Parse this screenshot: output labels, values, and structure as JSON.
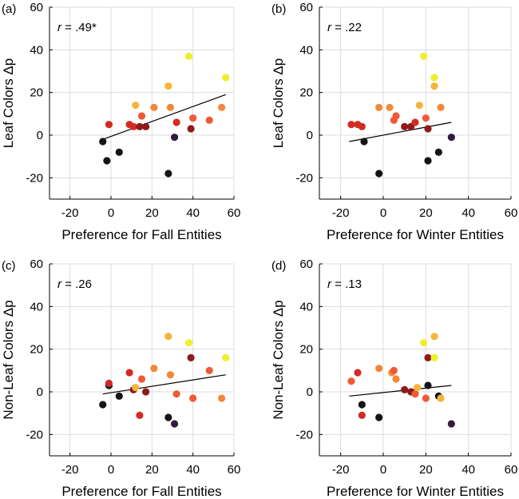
{
  "colors": {
    "grid": "#dcdcdc",
    "axis": "#000000",
    "fit_line": "#000000",
    "point_black": "#141414",
    "point_purple": "#331a40",
    "point_darkred": "#8e1a1a",
    "point_red": "#d42a24",
    "point_orangered": "#ef5a35",
    "point_orange": "#f5873a",
    "point_amber": "#f6b53a",
    "point_yellow": "#f0ee2c"
  },
  "chart_data": [
    {
      "type": "scatter",
      "panel_label": "(a)",
      "annotation": {
        "prefix": "r",
        "text": " = .49*"
      },
      "xlabel": "Preference for Fall Entities",
      "ylabel": "Leaf Colors Δp",
      "xlim": [
        -30,
        60
      ],
      "ylim": [
        -30,
        60
      ],
      "xticks": [
        "-20",
        "0",
        "20",
        "40",
        "60"
      ],
      "yticks": [
        "-20",
        "0",
        "20",
        "40",
        "60"
      ],
      "fit_line": {
        "x": [
          -4,
          56
        ],
        "y": [
          -2,
          19
        ]
      },
      "points": [
        {
          "x": -4,
          "y": -3,
          "c": "point_black"
        },
        {
          "x": -2,
          "y": -12,
          "c": "point_black"
        },
        {
          "x": 4,
          "y": -8,
          "c": "point_black"
        },
        {
          "x": 28,
          "y": -18,
          "c": "point_black"
        },
        {
          "x": -1,
          "y": 5,
          "c": "point_red"
        },
        {
          "x": 9,
          "y": 5,
          "c": "point_red"
        },
        {
          "x": 11,
          "y": 4,
          "c": "point_red"
        },
        {
          "x": 14,
          "y": 4,
          "c": "point_darkred"
        },
        {
          "x": 17,
          "y": 4,
          "c": "point_darkred"
        },
        {
          "x": 12,
          "y": 14,
          "c": "point_amber"
        },
        {
          "x": 15,
          "y": 9,
          "c": "point_orangered"
        },
        {
          "x": 21,
          "y": 13,
          "c": "point_orange"
        },
        {
          "x": 28,
          "y": 23,
          "c": "point_amber"
        },
        {
          "x": 29,
          "y": 13,
          "c": "point_orange"
        },
        {
          "x": 31,
          "y": -1,
          "c": "point_purple"
        },
        {
          "x": 32,
          "y": 6,
          "c": "point_red"
        },
        {
          "x": 38,
          "y": 37,
          "c": "point_yellow"
        },
        {
          "x": 39,
          "y": 3,
          "c": "point_darkred"
        },
        {
          "x": 40,
          "y": 8,
          "c": "point_orangered"
        },
        {
          "x": 48,
          "y": 7,
          "c": "point_orangered"
        },
        {
          "x": 54,
          "y": 13,
          "c": "point_orange"
        },
        {
          "x": 56,
          "y": 27,
          "c": "point_yellow"
        }
      ]
    },
    {
      "type": "scatter",
      "panel_label": "(b)",
      "annotation": {
        "prefix": "r",
        "text": " = .22"
      },
      "xlabel": "Preference for Winter Entities",
      "ylabel": "Leaf Colors  Δp",
      "xlim": [
        -30,
        60
      ],
      "ylim": [
        -30,
        60
      ],
      "xticks": [
        "-20",
        "0",
        "20",
        "40",
        "60"
      ],
      "yticks": [
        "-20",
        "0",
        "20",
        "40",
        "60"
      ],
      "fit_line": {
        "x": [
          -16,
          32
        ],
        "y": [
          -3,
          6
        ]
      },
      "points": [
        {
          "x": -15,
          "y": 5,
          "c": "point_red"
        },
        {
          "x": -12,
          "y": 5,
          "c": "point_red"
        },
        {
          "x": -10,
          "y": 4,
          "c": "point_red"
        },
        {
          "x": -9,
          "y": -3,
          "c": "point_black"
        },
        {
          "x": -2,
          "y": -18,
          "c": "point_black"
        },
        {
          "x": -2,
          "y": 13,
          "c": "point_orange"
        },
        {
          "x": 3,
          "y": 13,
          "c": "point_orange"
        },
        {
          "x": 5,
          "y": 7,
          "c": "point_orangered"
        },
        {
          "x": 6,
          "y": 9,
          "c": "point_orangered"
        },
        {
          "x": 10,
          "y": 4,
          "c": "point_darkred"
        },
        {
          "x": 13,
          "y": 4,
          "c": "point_darkred"
        },
        {
          "x": 15,
          "y": 6,
          "c": "point_red"
        },
        {
          "x": 17,
          "y": 14,
          "c": "point_amber"
        },
        {
          "x": 19,
          "y": 37,
          "c": "point_yellow"
        },
        {
          "x": 20,
          "y": 8,
          "c": "point_orangered"
        },
        {
          "x": 21,
          "y": 3,
          "c": "point_darkred"
        },
        {
          "x": 21,
          "y": -12,
          "c": "point_black"
        },
        {
          "x": 24,
          "y": 27,
          "c": "point_yellow"
        },
        {
          "x": 24,
          "y": 23,
          "c": "point_amber"
        },
        {
          "x": 26,
          "y": -8,
          "c": "point_black"
        },
        {
          "x": 27,
          "y": 13,
          "c": "point_orange"
        },
        {
          "x": 32,
          "y": -1,
          "c": "point_purple"
        }
      ]
    },
    {
      "type": "scatter",
      "panel_label": "(c)",
      "annotation": {
        "prefix": "r",
        "text": " = .26"
      },
      "xlabel": "Preference for Fall Entities",
      "ylabel": "Non-Leaf Colors Δp",
      "xlim": [
        -30,
        60
      ],
      "ylim": [
        -30,
        60
      ],
      "xticks": [
        "-20",
        "0",
        "20",
        "40",
        "60"
      ],
      "yticks": [
        "-20",
        "0",
        "20",
        "40",
        "60"
      ],
      "fit_line": {
        "x": [
          -4,
          56
        ],
        "y": [
          -1,
          8
        ]
      },
      "points": [
        {
          "x": -4,
          "y": -6,
          "c": "point_black"
        },
        {
          "x": -1,
          "y": 3,
          "c": "point_black"
        },
        {
          "x": -1,
          "y": 4,
          "c": "point_red"
        },
        {
          "x": 4,
          "y": -2,
          "c": "point_black"
        },
        {
          "x": 9,
          "y": 9,
          "c": "point_red"
        },
        {
          "x": 11,
          "y": 1,
          "c": "point_darkred"
        },
        {
          "x": 12,
          "y": 2,
          "c": "point_amber"
        },
        {
          "x": 14,
          "y": -11,
          "c": "point_red"
        },
        {
          "x": 15,
          "y": 6,
          "c": "point_orangered"
        },
        {
          "x": 17,
          "y": 0,
          "c": "point_darkred"
        },
        {
          "x": 21,
          "y": 11,
          "c": "point_orange"
        },
        {
          "x": 28,
          "y": 26,
          "c": "point_amber"
        },
        {
          "x": 28,
          "y": -12,
          "c": "point_black"
        },
        {
          "x": 29,
          "y": 8,
          "c": "point_orange"
        },
        {
          "x": 31,
          "y": -15,
          "c": "point_purple"
        },
        {
          "x": 32,
          "y": -1,
          "c": "point_orangered"
        },
        {
          "x": 38,
          "y": 23,
          "c": "point_yellow"
        },
        {
          "x": 39,
          "y": 16,
          "c": "point_darkred"
        },
        {
          "x": 40,
          "y": -3,
          "c": "point_orangered"
        },
        {
          "x": 48,
          "y": 10,
          "c": "point_orangered"
        },
        {
          "x": 54,
          "y": -3,
          "c": "point_orange"
        },
        {
          "x": 56,
          "y": 16,
          "c": "point_yellow"
        }
      ]
    },
    {
      "type": "scatter",
      "panel_label": "(d)",
      "annotation": {
        "prefix": "r",
        "text": " = .13"
      },
      "xlabel": "Preference for Winter Entities",
      "ylabel": "Non-Leaf Colors Δp",
      "xlim": [
        -30,
        60
      ],
      "ylim": [
        -30,
        60
      ],
      "xticks": [
        "-20",
        "0",
        "20",
        "40",
        "60"
      ],
      "yticks": [
        "-20",
        "0",
        "20",
        "40",
        "60"
      ],
      "fit_line": {
        "x": [
          -16,
          32
        ],
        "y": [
          -2,
          3
        ]
      },
      "points": [
        {
          "x": -15,
          "y": 5,
          "c": "point_orangered"
        },
        {
          "x": -12,
          "y": 9,
          "c": "point_red"
        },
        {
          "x": -10,
          "y": -6,
          "c": "point_black"
        },
        {
          "x": -10,
          "y": -11,
          "c": "point_red"
        },
        {
          "x": -2,
          "y": 11,
          "c": "point_orange"
        },
        {
          "x": -2,
          "y": -12,
          "c": "point_black"
        },
        {
          "x": 4,
          "y": 9,
          "c": "point_orange"
        },
        {
          "x": 5,
          "y": 10,
          "c": "point_orangered"
        },
        {
          "x": 6,
          "y": 6,
          "c": "point_orange"
        },
        {
          "x": 10,
          "y": 1,
          "c": "point_darkred"
        },
        {
          "x": 13,
          "y": 0,
          "c": "point_darkred"
        },
        {
          "x": 15,
          "y": -1,
          "c": "point_orangered"
        },
        {
          "x": 16,
          "y": 2,
          "c": "point_amber"
        },
        {
          "x": 19,
          "y": 23,
          "c": "point_yellow"
        },
        {
          "x": 20,
          "y": -3,
          "c": "point_orangered"
        },
        {
          "x": 21,
          "y": 16,
          "c": "point_darkred"
        },
        {
          "x": 21,
          "y": 3,
          "c": "point_black"
        },
        {
          "x": 24,
          "y": 26,
          "c": "point_amber"
        },
        {
          "x": 24,
          "y": 16,
          "c": "point_yellow"
        },
        {
          "x": 26,
          "y": -2,
          "c": "point_black"
        },
        {
          "x": 27,
          "y": -3,
          "c": "point_amber"
        },
        {
          "x": 32,
          "y": -15,
          "c": "point_purple"
        }
      ]
    }
  ]
}
